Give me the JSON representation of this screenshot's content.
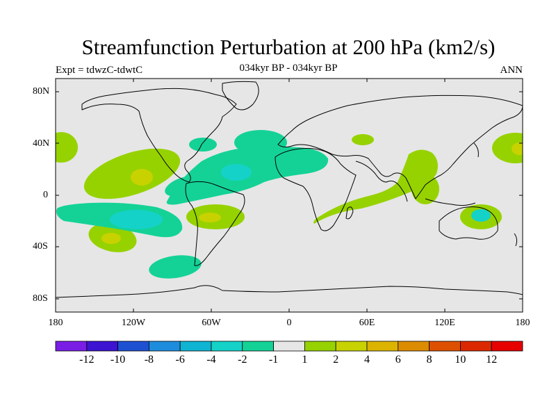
{
  "title": "Streamfunction Perturbation at 200 hPa (km2/s)",
  "subtitle": "034kyr BP - 034kyr BP",
  "left_label": "Expt = tdwzC-tdwtC",
  "right_label": "ANN",
  "lat_ticks": [
    "80N",
    "40N",
    "0",
    "40S",
    "80S"
  ],
  "lon_ticks": [
    "180",
    "120W",
    "60W",
    "0",
    "60E",
    "120E",
    "180"
  ],
  "colorbar": {
    "labels": [
      "-12",
      "-10",
      "-8",
      "-6",
      "-4",
      "-2",
      "-1",
      "1",
      "2",
      "4",
      "6",
      "8",
      "10",
      "12"
    ],
    "colors": [
      "#7a1ee6",
      "#3c14d2",
      "#1e50d2",
      "#1e8cdc",
      "#0fb4d2",
      "#14d2c8",
      "#14d296",
      "#e6e6e6",
      "#96d200",
      "#c8d200",
      "#dcb400",
      "#dc8c00",
      "#dc5000",
      "#dc2800",
      "#e60000"
    ]
  }
}
